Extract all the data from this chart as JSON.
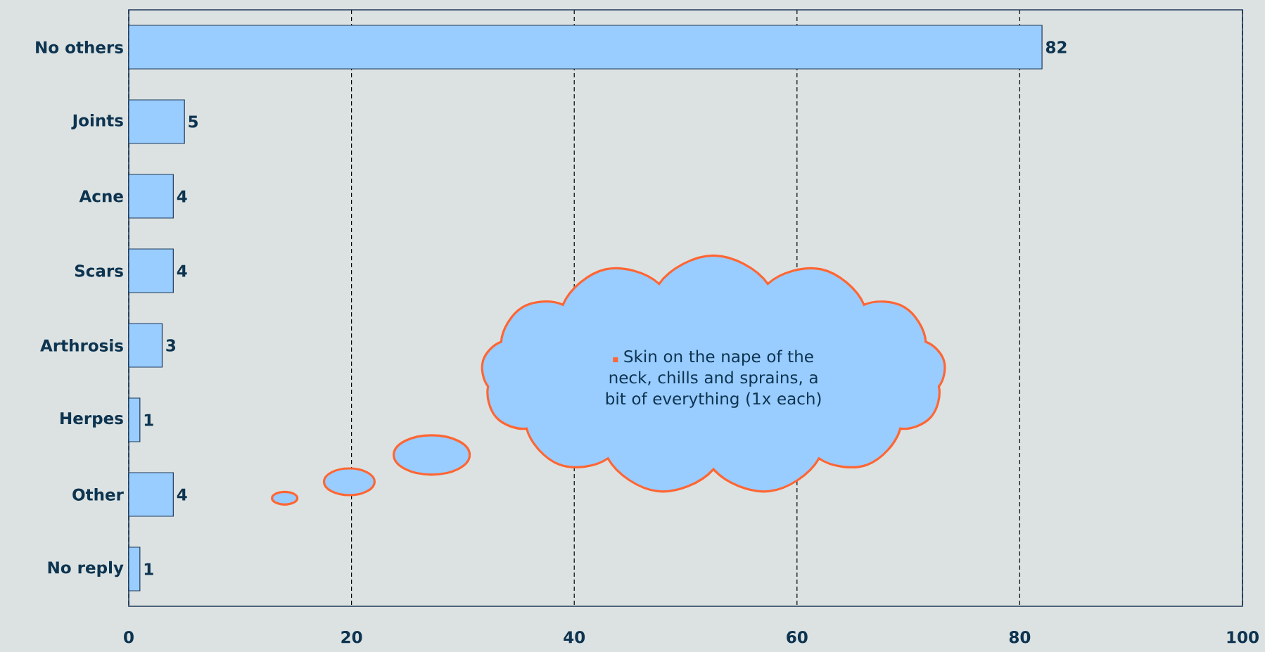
{
  "chart_data": {
    "type": "bar",
    "orientation": "horizontal",
    "categories": [
      "No others",
      "Joints",
      "Acne",
      "Scars",
      "Arthrosis",
      "Herpes",
      "Other",
      "No reply"
    ],
    "values": [
      82,
      5,
      4,
      4,
      3,
      1,
      4,
      1
    ],
    "color": "#99ccff",
    "xlim": [
      0,
      100
    ],
    "xticks": [
      0,
      20,
      40,
      60,
      80,
      100
    ],
    "grid": "x",
    "data_labels": true,
    "annotations": [
      "Skin on the nape of the neck, chills and sprains, a bit of everything (1x each)"
    ]
  }
}
